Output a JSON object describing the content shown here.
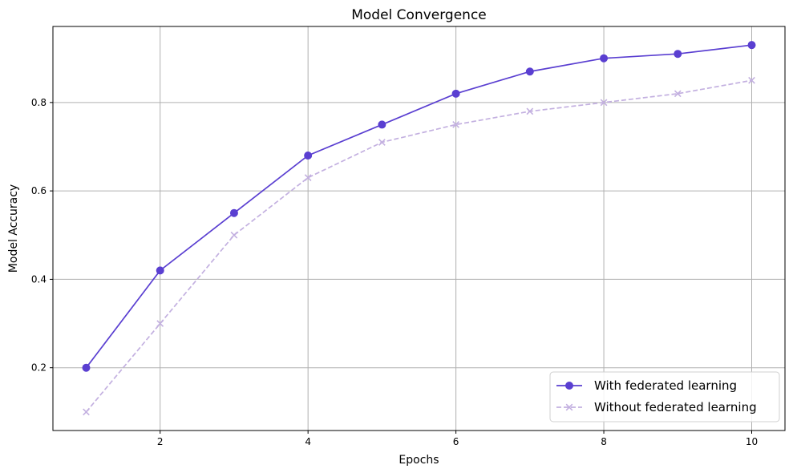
{
  "chart_data": {
    "type": "line",
    "title": "Model Convergence",
    "xlabel": "Epochs",
    "ylabel": "Model Accuracy",
    "x": [
      1,
      2,
      3,
      4,
      5,
      6,
      7,
      8,
      9,
      10
    ],
    "xlim": [
      0.55,
      10.45
    ],
    "ylim": [
      0.058,
      0.972
    ],
    "xticks": [
      2,
      4,
      6,
      8,
      10
    ],
    "yticks": [
      0.2,
      0.4,
      0.6,
      0.8
    ],
    "grid": true,
    "legend_position": "bottom-right",
    "series": [
      {
        "name": "With federated learning",
        "values": [
          0.2,
          0.42,
          0.55,
          0.68,
          0.75,
          0.82,
          0.87,
          0.9,
          0.91,
          0.93
        ],
        "color": "#5a3fd1",
        "line_style": "solid",
        "marker": "circle"
      },
      {
        "name": "Without federated learning",
        "values": [
          0.1,
          0.3,
          0.5,
          0.63,
          0.71,
          0.75,
          0.78,
          0.8,
          0.82,
          0.85
        ],
        "color": "#c3b0e0",
        "line_style": "dashed",
        "marker": "x"
      }
    ]
  }
}
